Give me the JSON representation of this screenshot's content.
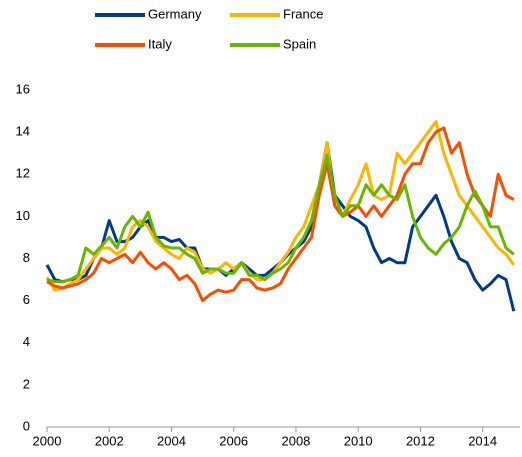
{
  "chart_data": {
    "type": "line",
    "x": [
      2000,
      2000.25,
      2000.5,
      2000.75,
      2001,
      2001.25,
      2001.5,
      2001.75,
      2002,
      2002.25,
      2002.5,
      2002.75,
      2003,
      2003.25,
      2003.5,
      2003.75,
      2004,
      2004.25,
      2004.5,
      2004.75,
      2005,
      2005.25,
      2005.5,
      2005.75,
      2006,
      2006.25,
      2006.5,
      2006.75,
      2007,
      2007.25,
      2007.5,
      2007.75,
      2008,
      2008.25,
      2008.5,
      2008.75,
      2009,
      2009.25,
      2009.5,
      2009.75,
      2010,
      2010.25,
      2010.5,
      2010.75,
      2011,
      2011.25,
      2011.5,
      2011.75,
      2012,
      2012.25,
      2012.5,
      2012.75,
      2013,
      2013.25,
      2013.5,
      2013.75,
      2014,
      2014.25,
      2014.5,
      2014.75,
      2015
    ],
    "series": [
      {
        "name": "Germany",
        "color": "#003a8c",
        "values": [
          7.7,
          7.0,
          6.9,
          7.0,
          7.0,
          7.2,
          8.0,
          8.5,
          9.8,
          8.8,
          8.8,
          9.0,
          9.5,
          9.8,
          9.0,
          9.0,
          8.8,
          8.9,
          8.5,
          8.5,
          7.5,
          7.5,
          7.5,
          7.2,
          7.5,
          7.8,
          7.5,
          7.2,
          7.2,
          7.5,
          7.8,
          8.2,
          8.5,
          8.8,
          9.5,
          11.5,
          13.5,
          11.0,
          10.5,
          10.0,
          9.8,
          9.5,
          8.5,
          7.8,
          8.0,
          7.8,
          7.8,
          9.5,
          10.0,
          10.5,
          11.0,
          10.0,
          8.8,
          8.0,
          7.8,
          7.0,
          6.5,
          6.8,
          7.2,
          7.0,
          5.5
        ]
      },
      {
        "name": "France",
        "color": "#ffb400",
        "values": [
          7.1,
          6.5,
          6.6,
          6.8,
          7.0,
          7.5,
          8.0,
          8.5,
          8.5,
          8.2,
          8.5,
          9.5,
          9.8,
          9.5,
          8.8,
          8.5,
          8.2,
          8.0,
          8.5,
          8.3,
          7.5,
          7.3,
          7.5,
          7.8,
          7.5,
          7.8,
          7.3,
          7.0,
          7.0,
          7.3,
          7.8,
          8.3,
          9.0,
          9.5,
          10.5,
          11.5,
          13.5,
          10.5,
          10.0,
          10.8,
          11.5,
          12.5,
          11.0,
          10.8,
          11.0,
          13.0,
          12.5,
          13.0,
          13.5,
          14.0,
          14.5,
          13.0,
          12.0,
          11.0,
          10.5,
          10.0,
          9.5,
          9.0,
          8.5,
          8.2,
          7.7
        ]
      },
      {
        "name": "Italy",
        "color": "#ff4b00",
        "values": [
          6.9,
          6.7,
          6.6,
          6.7,
          6.8,
          7.0,
          7.3,
          8.0,
          7.8,
          8.0,
          8.2,
          7.8,
          8.3,
          7.8,
          7.5,
          7.8,
          7.5,
          7.0,
          7.2,
          6.8,
          6.0,
          6.3,
          6.5,
          6.4,
          6.5,
          7.0,
          7.0,
          6.6,
          6.5,
          6.6,
          6.8,
          7.5,
          8.0,
          8.5,
          9.0,
          11.0,
          12.5,
          10.5,
          10.0,
          10.2,
          10.5,
          10.0,
          10.5,
          10.0,
          10.5,
          11.0,
          12.0,
          12.5,
          12.5,
          13.5,
          14.0,
          14.2,
          13.0,
          13.5,
          12.0,
          11.0,
          10.5,
          10.0,
          12.0,
          11.0,
          10.8
        ]
      },
      {
        "name": "Spain",
        "color": "#65b800",
        "values": [
          7.0,
          6.9,
          6.9,
          7.0,
          7.2,
          8.5,
          8.2,
          8.6,
          9.0,
          8.5,
          9.5,
          10.0,
          9.5,
          10.2,
          9.0,
          8.6,
          8.5,
          8.5,
          8.2,
          8.0,
          7.3,
          7.5,
          7.5,
          7.3,
          7.3,
          7.8,
          7.2,
          7.2,
          7.0,
          7.3,
          7.5,
          7.8,
          8.5,
          9.0,
          9.8,
          11.5,
          12.9,
          11.0,
          10.0,
          10.5,
          10.5,
          11.5,
          11.0,
          11.5,
          11.0,
          10.8,
          11.5,
          10.0,
          9.0,
          8.5,
          8.2,
          8.7,
          9.0,
          9.5,
          10.5,
          11.2,
          10.5,
          9.5,
          9.5,
          8.5,
          8.2
        ]
      }
    ],
    "xlim": [
      2000,
      2015.2
    ],
    "xticks": [
      2000,
      2002,
      2004,
      2006,
      2008,
      2010,
      2012,
      2014
    ],
    "ylim": [
      0,
      16
    ],
    "yticks": [
      0,
      2,
      4,
      6,
      8,
      10,
      12,
      14,
      16
    ]
  }
}
